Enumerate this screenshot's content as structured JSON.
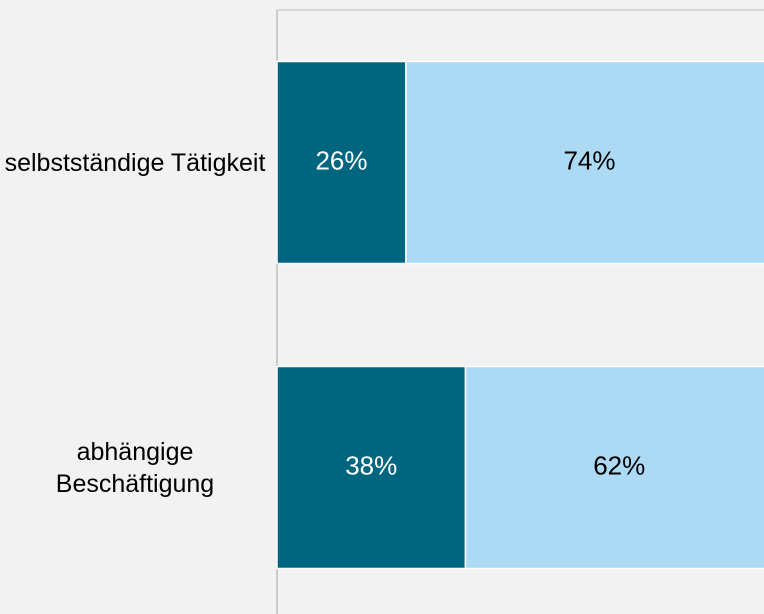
{
  "chart_data": {
    "type": "stacked_bar_horizontal",
    "categories": [
      "selbstständige Tätigkeit",
      "abhängige Beschäftigung"
    ],
    "series": [
      {
        "color": "#006680",
        "values": [
          26,
          38
        ],
        "value_labels": [
          "26%",
          "38%"
        ],
        "label_color": "#ffffff"
      },
      {
        "color": "#acd9f4",
        "values": [
          74,
          62
        ],
        "value_labels": [
          "74%",
          "62%"
        ],
        "label_color": "#000000"
      }
    ],
    "xlim": [
      0,
      100
    ]
  }
}
